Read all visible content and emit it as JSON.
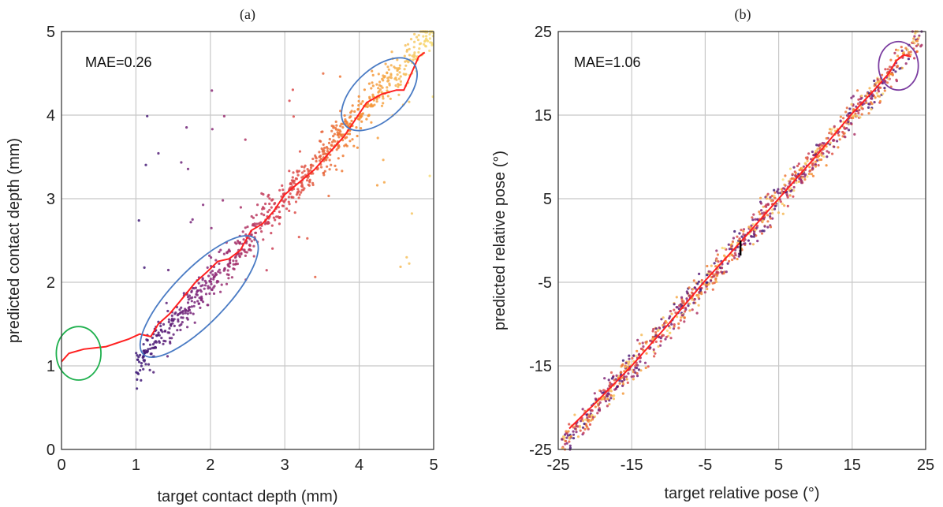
{
  "chart_data": [
    {
      "type": "scatter",
      "panel_label": "(a)",
      "xlabel": "target contact depth (mm)",
      "ylabel": "predicted contact depth (mm)",
      "xlim": [
        0,
        5
      ],
      "ylim": [
        0,
        5
      ],
      "xticks": [
        0,
        1,
        2,
        3,
        4,
        5
      ],
      "yticks": [
        0,
        1,
        2,
        3,
        4,
        5
      ],
      "grid": true,
      "annotation": "MAE=0.26",
      "point_color_scale": [
        "#3d1a78",
        "#8a2a7a",
        "#d9434f",
        "#f58a2e",
        "#f7e07a"
      ],
      "mean_line_color": "#ff2020",
      "trend_line": [
        [
          0.0,
          1.05
        ],
        [
          0.1,
          1.15
        ],
        [
          0.3,
          1.2
        ],
        [
          0.6,
          1.23
        ],
        [
          0.9,
          1.32
        ],
        [
          1.05,
          1.38
        ],
        [
          1.2,
          1.35
        ],
        [
          1.3,
          1.5
        ],
        [
          1.45,
          1.62
        ],
        [
          1.6,
          1.78
        ],
        [
          1.8,
          2.0
        ],
        [
          1.95,
          2.12
        ],
        [
          2.1,
          2.25
        ],
        [
          2.25,
          2.28
        ],
        [
          2.4,
          2.38
        ],
        [
          2.55,
          2.62
        ],
        [
          2.7,
          2.7
        ],
        [
          2.85,
          2.85
        ],
        [
          3.0,
          3.05
        ],
        [
          3.2,
          3.2
        ],
        [
          3.4,
          3.35
        ],
        [
          3.6,
          3.55
        ],
        [
          3.8,
          3.75
        ],
        [
          3.95,
          3.95
        ],
        [
          4.1,
          4.15
        ],
        [
          4.3,
          4.25
        ],
        [
          4.5,
          4.3
        ],
        [
          4.6,
          4.3
        ],
        [
          4.7,
          4.5
        ],
        [
          4.8,
          4.7
        ],
        [
          4.88,
          4.75
        ]
      ],
      "circles": [
        {
          "color": "#1fb04e",
          "cx": 0.23,
          "cy": 1.15,
          "rx": 0.3,
          "ry": 0.32,
          "angle": 0
        },
        {
          "color": "#4a7bc4",
          "cx": 1.85,
          "cy": 1.83,
          "rx": 1.08,
          "ry": 0.32,
          "angle": 46
        },
        {
          "color": "#4a7bc4",
          "cx": 4.27,
          "cy": 4.25,
          "rx": 0.62,
          "ry": 0.3,
          "angle": 43
        }
      ],
      "scatter": {
        "x_start": 1.0,
        "x_end": 5.0,
        "slope": 1.0,
        "intercept": 0.0,
        "noise": 0.12,
        "outlier_fraction": 0.06,
        "outlier_y_range": [
          2.0,
          4.5
        ],
        "count": 900
      }
    },
    {
      "type": "scatter",
      "panel_label": "(b)",
      "xlabel": "target relative pose (°)",
      "ylabel": "predicted relative pose (°)",
      "xlim": [
        -25,
        25
      ],
      "ylim": [
        -25,
        25
      ],
      "xticks": [
        -25,
        -15,
        -5,
        5,
        15,
        25
      ],
      "yticks": [
        -25,
        -15,
        -5,
        5,
        15,
        25
      ],
      "grid": true,
      "annotation": "MAE=1.06",
      "point_color_scale": [
        "#3d1a78",
        "#8a2a7a",
        "#d9434f",
        "#f58a2e",
        "#f7e07a"
      ],
      "mean_line_color": "#ff2020",
      "trend_line": [
        [
          -23.5,
          -22.5
        ],
        [
          -20,
          -19.5
        ],
        [
          -15,
          -15
        ],
        [
          -10,
          -10
        ],
        [
          -5,
          -4.8
        ],
        [
          0,
          0
        ],
        [
          5,
          5
        ],
        [
          10,
          10
        ],
        [
          15,
          15.2
        ],
        [
          18,
          18
        ],
        [
          20,
          20
        ],
        [
          21,
          21.5
        ],
        [
          22,
          22.2
        ],
        [
          23,
          22
        ]
      ],
      "circles": [
        {
          "color": "#7b3da0",
          "cx": 21.3,
          "cy": 20.9,
          "rx": 2.7,
          "ry": 2.9,
          "angle": 0
        }
      ],
      "marker": {
        "color": "#000000",
        "x": -0.2,
        "y_from": -1.8,
        "y_to": 0.0
      },
      "scatter": {
        "x_start": -24.5,
        "x_end": 24.5,
        "slope": 1.0,
        "intercept": 0.0,
        "noise": 0.9,
        "outlier_fraction": 0.0,
        "count": 1100
      }
    }
  ]
}
